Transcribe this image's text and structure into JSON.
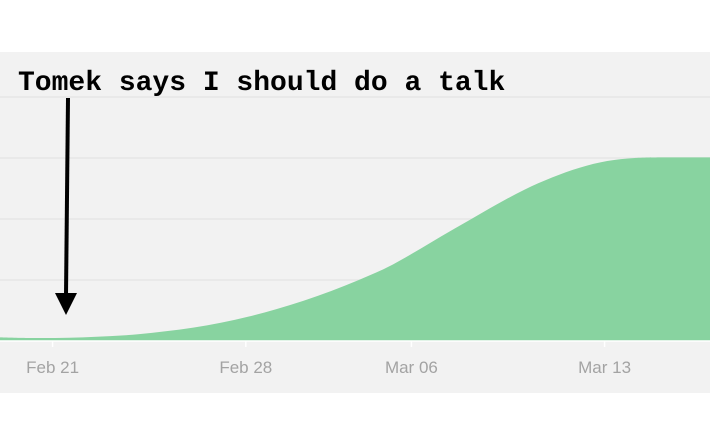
{
  "chart_data": {
    "type": "area",
    "title": "",
    "xlabel": "",
    "ylabel": "",
    "x_ticks": [
      "Feb 21",
      "Feb 28",
      "Mar 06",
      "Mar 13"
    ],
    "x": [
      "Feb 20",
      "Feb 21",
      "Feb 22",
      "Feb 23",
      "Feb 24",
      "Feb 25",
      "Feb 26",
      "Feb 27",
      "Feb 28",
      "Mar 01",
      "Mar 02",
      "Mar 03",
      "Mar 04",
      "Mar 05",
      "Mar 06",
      "Mar 07",
      "Mar 08",
      "Mar 09",
      "Mar 10",
      "Mar 11",
      "Mar 12",
      "Mar 13",
      "Mar 14",
      "Mar 15",
      "Mar 16"
    ],
    "values": [
      0.06,
      0.05,
      0.05,
      0.06,
      0.08,
      0.11,
      0.16,
      0.22,
      0.3,
      0.4,
      0.52,
      0.66,
      0.82,
      1.0,
      1.2,
      1.45,
      1.72,
      1.98,
      2.24,
      2.48,
      2.68,
      2.84,
      2.95,
      3.0,
      3.01
    ],
    "ylim": [
      0,
      4
    ],
    "grid": true,
    "colors": {
      "plot_background": "#f2f2f2",
      "area_fill": "#88d3a0",
      "gridline": "#e6e6e6",
      "tick_label": "#a3a3a3",
      "annotation": "#000000"
    },
    "annotations": [
      {
        "text": "Tomek says I should do a talk",
        "x": "Feb 21",
        "arrow": "down"
      }
    ]
  }
}
